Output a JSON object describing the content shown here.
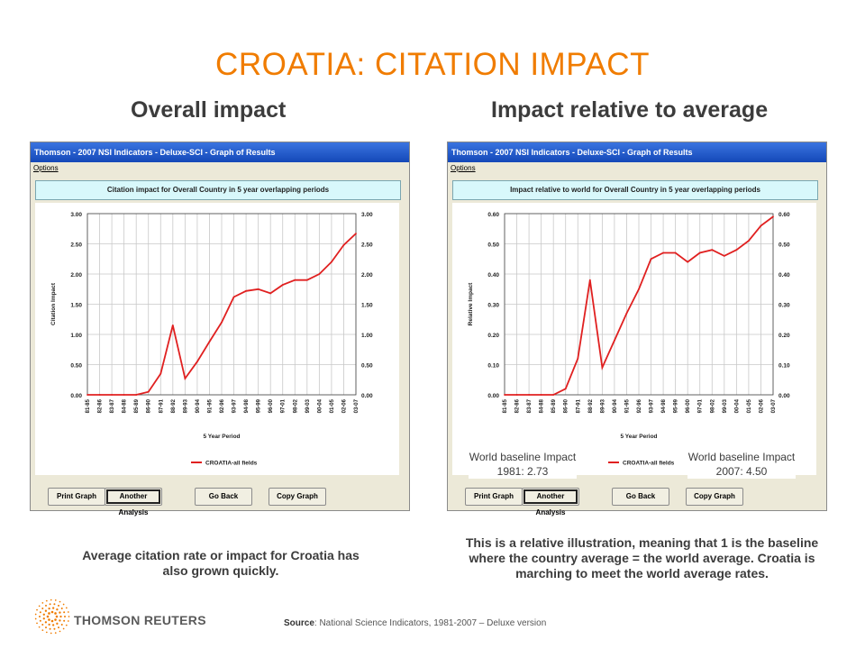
{
  "slide": {
    "title": "CROATIA: CITATION IMPACT",
    "left_heading": "Overall impact",
    "right_heading": "Impact relative to average",
    "left_caption": "Average citation rate or impact for Croatia has also grown quickly.",
    "right_caption": "This is a relative illustration, meaning that 1 is the baseline where the country average = the world average.  Croatia is marching to meet the world average rates.",
    "baseline_1981": "World baseline Impact 1981: 2.73",
    "baseline_2007": "World baseline Impact 2007: 4.50",
    "source_label": "Source",
    "source_text": ": National Science Indicators, 1981-2007 – Deluxe version",
    "brand": "THOMSON REUTERS"
  },
  "window": {
    "title": "Thomson - 2007 NSI Indicators - Deluxe-SCI - Graph of Results",
    "menu_options": "Options",
    "buttons": [
      "Print Graph",
      "Another Analysis",
      "Go Back",
      "Copy Graph"
    ]
  },
  "colors": {
    "accent": "#f07c00",
    "line": "#e02020",
    "titlebar": "#2a5fd0",
    "banner": "#d8f8fb"
  },
  "chart_data": [
    {
      "type": "line",
      "title": "Citation impact for Overall Country in 5 year overlapping periods",
      "xlabel": "5 Year Period",
      "ylabel": "Citation Impact",
      "ylim": [
        0,
        3
      ],
      "yticks": [
        "0.00",
        "0.50",
        "1.00",
        "1.50",
        "2.00",
        "2.50",
        "3.00"
      ],
      "grid": true,
      "legend": "bottom",
      "categories": [
        "81-85",
        "82-86",
        "83-87",
        "84-88",
        "85-89",
        "86-90",
        "87-91",
        "88-92",
        "89-93",
        "90-94",
        "91-95",
        "92-96",
        "93-97",
        "94-98",
        "95-99",
        "96-00",
        "97-01",
        "98-02",
        "99-03",
        "00-04",
        "01-05",
        "02-06",
        "03-07"
      ],
      "series": [
        {
          "name": "CROATIA-all fields",
          "values": [
            0.0,
            0.0,
            0.0,
            0.0,
            0.0,
            0.05,
            0.35,
            1.15,
            0.27,
            0.55,
            0.88,
            1.2,
            1.62,
            1.72,
            1.75,
            1.68,
            1.82,
            1.9,
            1.9,
            2.0,
            2.2,
            2.48,
            2.67
          ]
        }
      ]
    },
    {
      "type": "line",
      "title": "Impact relative to world for Overall Country in 5 year overlapping periods",
      "xlabel": "5 Year Period",
      "ylabel": "Relative Impact",
      "ylim": [
        0,
        0.6
      ],
      "yticks": [
        "0.00",
        "0.10",
        "0.20",
        "0.30",
        "0.40",
        "0.50",
        "0.60"
      ],
      "grid": true,
      "legend": "bottom",
      "categories": [
        "81-85",
        "82-86",
        "83-87",
        "84-88",
        "85-89",
        "86-90",
        "87-91",
        "88-92",
        "89-93",
        "90-94",
        "91-95",
        "92-96",
        "93-97",
        "94-98",
        "95-99",
        "96-00",
        "97-01",
        "98-02",
        "99-03",
        "00-04",
        "01-05",
        "02-06",
        "03-07"
      ],
      "series": [
        {
          "name": "CROATIA-all fields",
          "values": [
            0.0,
            0.0,
            0.0,
            0.0,
            0.0,
            0.02,
            0.12,
            0.38,
            0.09,
            0.18,
            0.27,
            0.35,
            0.45,
            0.47,
            0.47,
            0.44,
            0.47,
            0.48,
            0.46,
            0.48,
            0.51,
            0.56,
            0.59
          ]
        }
      ]
    }
  ]
}
